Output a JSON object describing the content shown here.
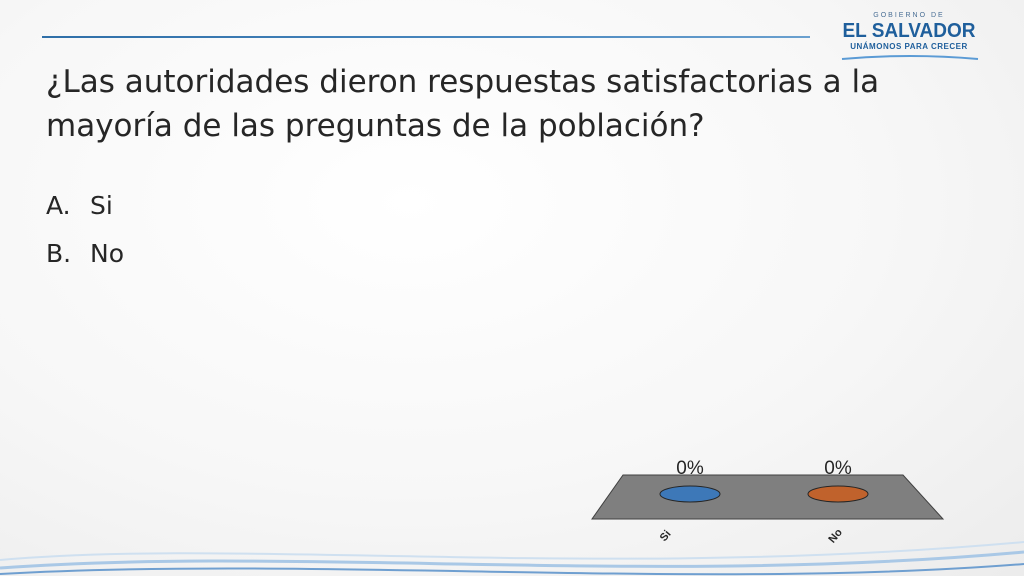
{
  "header": {
    "logo": {
      "line1": "GOBIERNO DE",
      "line2": "EL SALVADOR",
      "line3": "UNÁMONOS PARA CRECER"
    }
  },
  "slide": {
    "title": "¿Las autoridades dieron respuestas satisfactorias a la mayoría de las preguntas de la población?",
    "options": [
      {
        "letter": "A.",
        "text": "Si"
      },
      {
        "letter": "B.",
        "text": "No"
      }
    ]
  },
  "chart_data": {
    "type": "bar",
    "categories": [
      "Si",
      "No"
    ],
    "values": [
      0,
      0
    ],
    "data_labels": [
      "0%",
      "0%"
    ],
    "colors": [
      "#3d78b8",
      "#c0622c"
    ]
  }
}
